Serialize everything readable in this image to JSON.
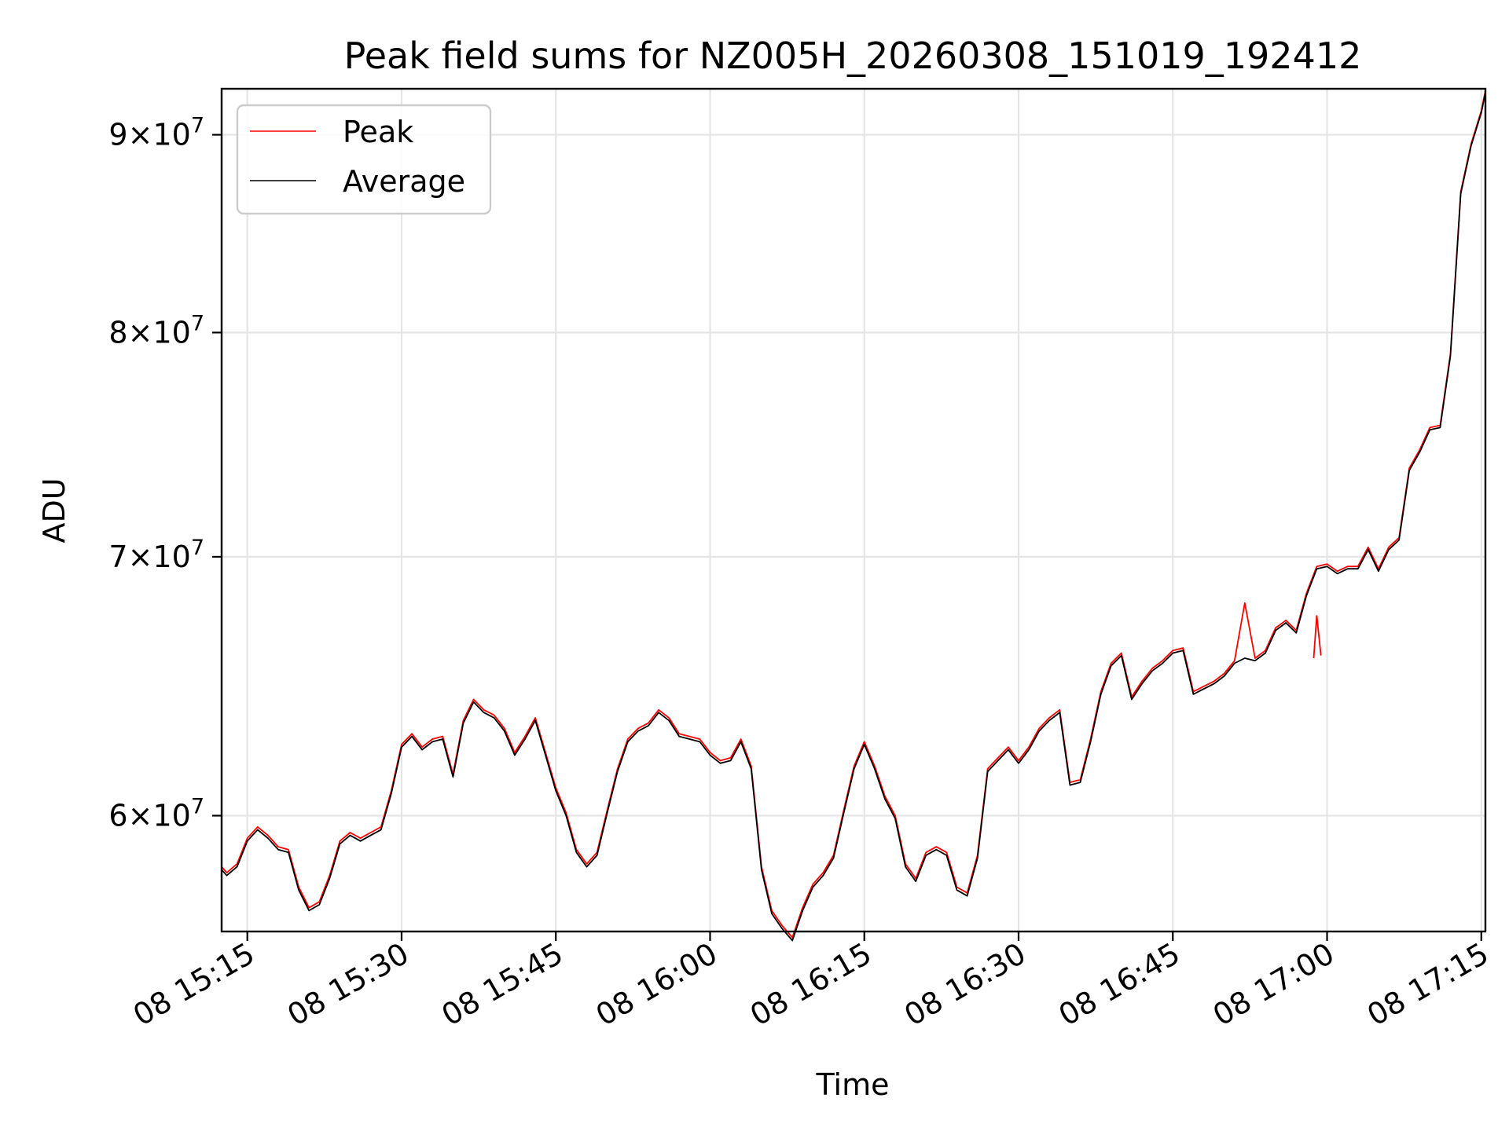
{
  "chart_data": {
    "type": "line",
    "title": "Peak field sums for NZ005H_20260308_151019_192412",
    "xlabel": "Time",
    "ylabel": "ADU",
    "scale_y": "log",
    "grid": true,
    "legend_position": "upper-left",
    "xlim_minutes": [
      12.5,
      135.4
    ],
    "ylim": [
      56000000,
      92500000
    ],
    "x_ticks": [
      {
        "minutes": 15,
        "label": "08 15:15"
      },
      {
        "minutes": 30,
        "label": "08 15:30"
      },
      {
        "minutes": 45,
        "label": "08 15:45"
      },
      {
        "minutes": 60,
        "label": "08 16:00"
      },
      {
        "minutes": 75,
        "label": "08 16:15"
      },
      {
        "minutes": 90,
        "label": "08 16:30"
      },
      {
        "minutes": 105,
        "label": "08 16:45"
      },
      {
        "minutes": 120,
        "label": "08 17:00"
      },
      {
        "minutes": 135,
        "label": "08 17:15"
      }
    ],
    "y_ticks": [
      {
        "value": 60000000,
        "mantissa": "6",
        "exponent": "7"
      },
      {
        "value": 70000000,
        "mantissa": "7",
        "exponent": "7"
      },
      {
        "value": 80000000,
        "mantissa": "8",
        "exponent": "7"
      },
      {
        "value": 90000000,
        "mantissa": "9",
        "exponent": "7"
      }
    ],
    "x_minutes_after_15h": [
      12.5,
      13,
      14,
      15,
      16,
      17,
      18,
      19,
      20,
      21,
      22,
      23,
      24,
      25,
      26,
      27,
      28,
      29,
      30,
      31,
      32,
      33,
      34,
      35,
      36,
      37,
      38,
      39,
      40,
      41,
      42,
      43,
      44,
      45,
      46,
      47,
      48,
      49,
      50,
      51,
      52,
      53,
      54,
      55,
      56,
      57,
      58,
      59,
      60,
      61,
      62,
      63,
      64,
      65,
      66,
      67,
      68,
      69,
      70,
      71,
      72,
      73,
      74,
      75,
      76,
      77,
      78,
      79,
      80,
      81,
      82,
      83,
      84,
      85,
      86,
      87,
      88,
      89,
      90,
      91,
      92,
      93,
      94,
      95,
      96,
      97,
      98,
      99,
      100,
      101,
      102,
      103,
      104,
      105,
      106,
      107,
      108,
      109,
      110,
      111,
      112,
      113,
      114,
      115,
      116,
      117,
      118,
      119,
      120,
      121,
      122,
      123,
      124,
      125,
      126,
      127,
      128,
      129,
      130,
      131,
      132,
      133,
      134,
      135,
      135.4
    ],
    "series": [
      {
        "name": "Peak",
        "color": "#ff0000",
        "values": [
          58200000,
          58000000,
          58300000,
          59200000,
          59600000,
          59300000,
          58900000,
          58800000,
          57500000,
          56800000,
          57000000,
          57900000,
          59100000,
          59400000,
          59200000,
          59400000,
          59600000,
          60900000,
          62600000,
          63000000,
          62500000,
          62800000,
          62900000,
          61500000,
          63500000,
          64300000,
          63900000,
          63700000,
          63200000,
          62300000,
          62900000,
          63600000,
          62300000,
          61000000,
          60100000,
          58800000,
          58300000,
          58700000,
          60200000,
          61700000,
          62800000,
          63200000,
          63400000,
          63900000,
          63600000,
          63000000,
          62900000,
          62800000,
          62300000,
          62000000,
          62100000,
          62800000,
          61800000,
          58200000,
          56700000,
          56200000,
          55800000,
          56800000,
          57600000,
          58000000,
          58600000,
          60200000,
          61800000,
          62700000,
          61800000,
          60700000,
          60000000,
          58300000,
          57800000,
          58700000,
          58900000,
          58700000,
          57500000,
          57300000,
          58600000,
          61700000,
          62100000,
          62500000,
          62000000,
          62500000,
          63200000,
          63600000,
          63900000,
          61200000,
          61300000,
          62800000,
          64600000,
          65700000,
          66100000,
          64400000,
          65000000,
          65500000,
          65800000,
          66200000,
          66300000,
          64600000,
          64800000,
          65000000,
          65300000,
          65800000,
          68100000,
          65900000,
          66200000,
          67100000,
          67400000,
          67000000,
          68500000,
          69600000,
          69700000,
          69400000,
          69600000,
          69600000,
          70400000,
          69500000,
          70400000,
          70800000,
          73800000,
          74600000,
          75600000,
          75700000,
          79000000,
          87000000,
          89500000,
          91300000,
          92400000
        ],
        "annotation": "brief spike near 16:59 to about 67,600,000"
      },
      {
        "name": "Average",
        "color": "#000000",
        "values": [
          58100000,
          57900000,
          58200000,
          59100000,
          59500000,
          59200000,
          58800000,
          58700000,
          57400000,
          56700000,
          56900000,
          57800000,
          59000000,
          59300000,
          59100000,
          59300000,
          59500000,
          60800000,
          62500000,
          62900000,
          62400000,
          62700000,
          62800000,
          61400000,
          63400000,
          64200000,
          63800000,
          63600000,
          63100000,
          62200000,
          62800000,
          63500000,
          62200000,
          60900000,
          60000000,
          58700000,
          58200000,
          58600000,
          60100000,
          61600000,
          62700000,
          63100000,
          63300000,
          63800000,
          63500000,
          62900000,
          62800000,
          62700000,
          62200000,
          61900000,
          62000000,
          62700000,
          61700000,
          58100000,
          56600000,
          56100000,
          55700000,
          56700000,
          57500000,
          57900000,
          58500000,
          60100000,
          61700000,
          62600000,
          61700000,
          60600000,
          59900000,
          58200000,
          57700000,
          58600000,
          58800000,
          58600000,
          57400000,
          57200000,
          58500000,
          61600000,
          62000000,
          62400000,
          61900000,
          62400000,
          63100000,
          63500000,
          63800000,
          61100000,
          61200000,
          62700000,
          64500000,
          65600000,
          66000000,
          64300000,
          64900000,
          65400000,
          65700000,
          66100000,
          66200000,
          64500000,
          64700000,
          64900000,
          65200000,
          65700000,
          65900000,
          65800000,
          66100000,
          67000000,
          67300000,
          66900000,
          68400000,
          69500000,
          69600000,
          69300000,
          69500000,
          69500000,
          70300000,
          69400000,
          70300000,
          70700000,
          73700000,
          74500000,
          75500000,
          75600000,
          78900000,
          86900000,
          89400000,
          91200000,
          92300000
        ]
      }
    ]
  }
}
